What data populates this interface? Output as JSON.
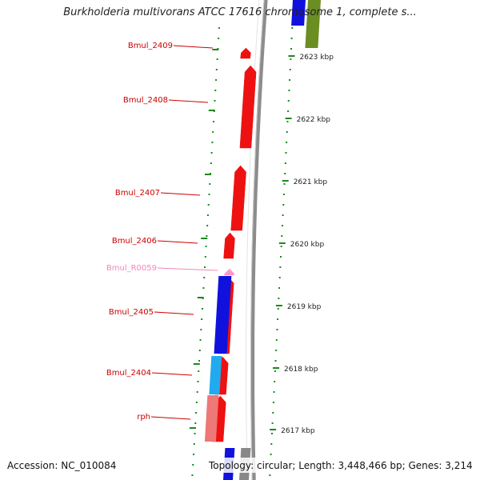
{
  "title": "Burkholderia multivorans ATCC 17616 chromosome 1, complete s...",
  "accession": "Accession: NC_010084",
  "summary": "Topology: circular; Length: 3,448,466 bp; Genes: 3,214",
  "colors": {
    "backbone": "#8c8c8c",
    "tick": "#1a8a1a",
    "gene_label": "#cc0000",
    "rna_label": "#ee88bb",
    "red": "#ee1111",
    "blue": "#1111dd",
    "cyan": "#22aaee",
    "salmon": "#ee7777",
    "olive": "#6b8e23",
    "gray": "#888888",
    "pink": "#ff99cc"
  },
  "kbp_labels": [
    "2623 kbp",
    "2622 kbp",
    "2621 kbp",
    "2620 kbp",
    "2619 kbp",
    "2618 kbp",
    "2617 kbp"
  ],
  "genes": [
    {
      "label": "Bmul_2409",
      "type": "gene"
    },
    {
      "label": "Bmul_2408",
      "type": "gene"
    },
    {
      "label": "Bmul_2407",
      "type": "gene"
    },
    {
      "label": "Bmul_2406",
      "type": "gene"
    },
    {
      "label": "Bmul_R0059",
      "type": "rna"
    },
    {
      "label": "Bmul_2405",
      "type": "gene"
    },
    {
      "label": "Bmul_2404",
      "type": "gene"
    },
    {
      "label": "rph",
      "type": "gene"
    }
  ]
}
